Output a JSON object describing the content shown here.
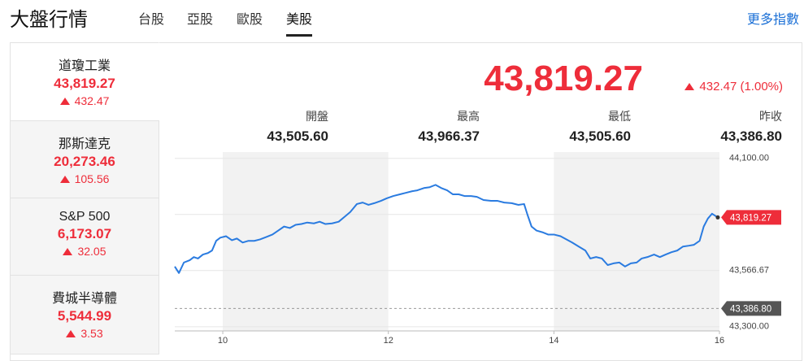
{
  "header": {
    "title": "大盤行情",
    "tabs": [
      "台股",
      "亞股",
      "歐股",
      "美股"
    ],
    "more": "更多指數"
  },
  "indices": [
    {
      "name": "道瓊工業",
      "value": "43,819.27",
      "change": "432.47"
    },
    {
      "name": "那斯達克",
      "value": "20,273.46",
      "change": "105.56"
    },
    {
      "name": "S&P 500",
      "value": "6,173.07",
      "change": "32.05"
    },
    {
      "name": "費城半導體",
      "value": "5,544.99",
      "change": "3.53"
    }
  ],
  "detail": {
    "price": "43,819.27",
    "change": "432.47 (1.00%)",
    "stats": [
      {
        "label": "開盤",
        "value": "43,505.60"
      },
      {
        "label": "最高",
        "value": "43,966.37"
      },
      {
        "label": "最低",
        "value": "43,505.60"
      },
      {
        "label": "昨收",
        "value": "43,386.80"
      }
    ]
  },
  "chart_data": {
    "type": "line",
    "x": [
      9.42,
      9.47,
      9.53,
      9.6,
      9.65,
      9.7,
      9.76,
      9.82,
      9.87,
      9.92,
      9.97,
      10.04,
      10.11,
      10.17,
      10.24,
      10.31,
      10.38,
      10.45,
      10.53,
      10.6,
      10.67,
      10.74,
      10.81,
      10.88,
      10.95,
      11.02,
      11.1,
      11.17,
      11.24,
      11.32,
      11.4,
      11.47,
      11.54,
      11.62,
      11.69,
      11.76,
      11.83,
      11.91,
      11.98,
      12.06,
      12.14,
      12.21,
      12.29,
      12.35,
      12.43,
      12.5,
      12.57,
      12.64,
      12.71,
      12.78,
      12.85,
      12.92,
      13.0,
      13.07,
      13.15,
      13.24,
      13.32,
      13.4,
      13.49,
      13.57,
      13.64,
      13.68,
      13.73,
      13.79,
      13.86,
      13.93,
      14.0,
      14.08,
      14.15,
      14.22,
      14.3,
      14.38,
      14.44,
      14.51,
      14.58,
      14.65,
      14.72,
      14.79,
      14.86,
      14.93,
      15.0,
      15.06,
      15.13,
      15.21,
      15.28,
      15.35,
      15.42,
      15.49,
      15.56,
      15.63,
      15.69,
      15.76,
      15.81,
      15.86,
      15.91,
      15.98
    ],
    "series": [
      {
        "color": "#2a7be0",
        "values": [
          43586,
          43555,
          43605,
          43616,
          43631,
          43624,
          43643,
          43650,
          43662,
          43708,
          43723,
          43730,
          43711,
          43719,
          43700,
          43708,
          43708,
          43715,
          43727,
          43738,
          43757,
          43776,
          43769,
          43784,
          43788,
          43795,
          43791,
          43799,
          43788,
          43791,
          43799,
          43822,
          43845,
          43883,
          43890,
          43879,
          43887,
          43898,
          43910,
          43921,
          43929,
          43936,
          43944,
          43948,
          43959,
          43963,
          43974,
          43959,
          43948,
          43929,
          43929,
          43921,
          43921,
          43917,
          43902,
          43898,
          43898,
          43890,
          43887,
          43879,
          43883,
          43833,
          43776,
          43757,
          43749,
          43738,
          43738,
          43730,
          43715,
          43700,
          43681,
          43662,
          43624,
          43631,
          43624,
          43593,
          43601,
          43605,
          43586,
          43601,
          43605,
          43624,
          43631,
          43643,
          43631,
          43643,
          43654,
          43662,
          43681,
          43685,
          43689,
          43708,
          43776,
          43814,
          43837,
          43819.27
        ]
      }
    ],
    "xlim": [
      9.42,
      16
    ],
    "xticks": [
      10,
      12,
      14,
      16
    ],
    "ylim": [
      43280,
      44130
    ],
    "yticks": [
      {
        "value": 44100,
        "label": "44,100.00"
      },
      {
        "value": 43833.33,
        "label": null
      },
      {
        "value": 43566.67,
        "label": "43,566.67"
      },
      {
        "value": 43300,
        "label": "43,300.00"
      }
    ],
    "grid": true,
    "annotations": [
      {
        "x": 15.98,
        "y": 43819.27,
        "label": "43,819.27",
        "color": "#ee2d3a"
      }
    ],
    "reference_lines": [
      {
        "value": 43386.8,
        "label": "43,386.80",
        "color": "#555555"
      }
    ]
  }
}
